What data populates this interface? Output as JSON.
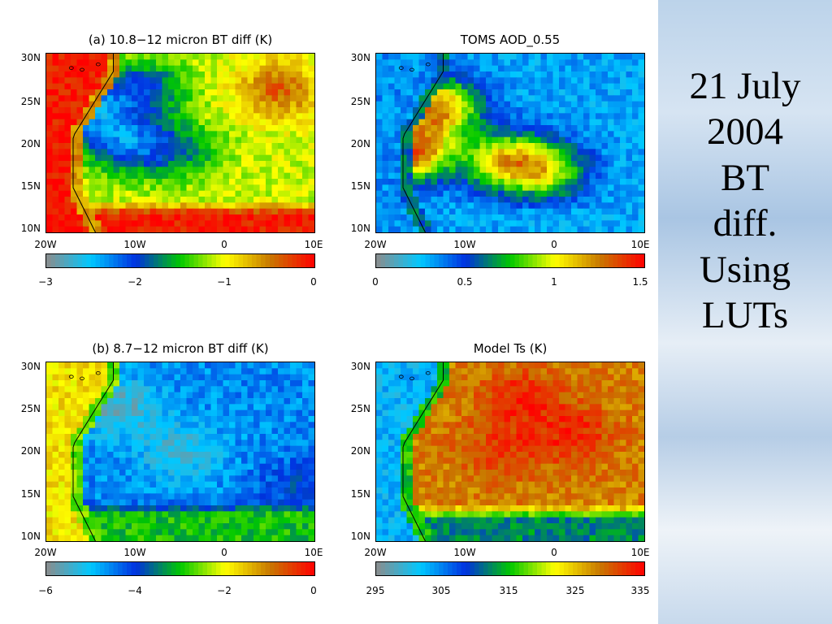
{
  "side": {
    "lines": [
      "21 July",
      "2004",
      "BT",
      "diff.",
      "Using",
      "LUTs"
    ],
    "bg_color": "#bcd3ea"
  },
  "colorscale": [
    "#8c8c8c",
    "#00c8ff",
    "#0030e0",
    "#00c800",
    "#ffff00",
    "#c87800",
    "#ff0000"
  ],
  "chart_data": [
    {
      "type": "heatmap",
      "title": "(a) 10.8−12 micron BT diff (K)",
      "x_ticks": [
        "20W",
        "10W",
        "0",
        "10E"
      ],
      "y_ticks": [
        "30N",
        "25N",
        "20N",
        "15N",
        "10N"
      ],
      "xlim": [
        -20,
        10
      ],
      "ylim": [
        10,
        30
      ],
      "colorbar": {
        "ticks": [
          "−3",
          "−2",
          "−1",
          "0"
        ],
        "range": [
          -3,
          0
        ]
      },
      "fields": {
        "ocean": -0.1,
        "coast": [
          -0.6
        ],
        "land_base": -1.1,
        "hotspots": [
          {
            "lon": -16,
            "lat": 24,
            "value": -2.4
          },
          {
            "lon": -11,
            "lat": 20,
            "value": -2.2
          },
          {
            "lon": -9,
            "lat": 26,
            "value": -2.0
          },
          {
            "lon": -5,
            "lat": 19,
            "value": -1.7
          },
          {
            "lon": 6,
            "lat": 26,
            "value": -0.4
          }
        ],
        "south_band": {
          "lat_max": 13.5,
          "value": -0.1
        }
      }
    },
    {
      "type": "heatmap",
      "title": "TOMS AOD_0.55",
      "x_ticks": [
        "20W",
        "10W",
        "0",
        "10E"
      ],
      "y_ticks": [
        "30N",
        "25N",
        "20N",
        "15N",
        "10N"
      ],
      "xlim": [
        -20,
        10
      ],
      "ylim": [
        10,
        30
      ],
      "colorbar": {
        "ticks": [
          "0",
          "0.5",
          "1",
          "1.5"
        ],
        "range": [
          0,
          1.5
        ]
      },
      "fields": {
        "ocean": 0.35,
        "coast": [
          0.6
        ],
        "land_base": 0.3,
        "hotspots": [
          {
            "lon": -16,
            "lat": 19,
            "value": 1.3
          },
          {
            "lon": -13,
            "lat": 24,
            "value": 1.2
          },
          {
            "lon": -6,
            "lat": 18,
            "value": 1.0
          },
          {
            "lon": -1,
            "lat": 17,
            "value": 0.95
          }
        ],
        "south_band": {
          "lat_max": 13.0,
          "value": 0.3
        }
      }
    },
    {
      "type": "heatmap",
      "title": "(b) 8.7−12 micron BT diff (K)",
      "x_ticks": [
        "20W",
        "10W",
        "0",
        "10E"
      ],
      "y_ticks": [
        "30N",
        "25N",
        "20N",
        "15N",
        "10N"
      ],
      "xlim": [
        -20,
        10
      ],
      "ylim": [
        10,
        30
      ],
      "colorbar": {
        "ticks": [
          "−6",
          "−4",
          "−2",
          "0"
        ],
        "range": [
          -6,
          0
        ]
      },
      "fields": {
        "ocean": -1.8,
        "coast": [
          -2.6
        ],
        "land_base": -4.6,
        "hotspots": [
          {
            "lon": -12,
            "lat": 25,
            "value": -5.6
          },
          {
            "lon": -5,
            "lat": 20,
            "value": -5.4
          },
          {
            "lon": 8,
            "lat": 16,
            "value": -4.0
          }
        ],
        "south_band": {
          "lat_max": 14.5,
          "value": -3.0
        }
      }
    },
    {
      "type": "heatmap",
      "title": "Model Ts (K)",
      "x_ticks": [
        "20W",
        "10W",
        "0",
        "10E"
      ],
      "y_ticks": [
        "30N",
        "25N",
        "20N",
        "15N",
        "10N"
      ],
      "xlim": [
        -20,
        10
      ],
      "ylim": [
        10,
        30
      ],
      "colorbar": {
        "ticks": [
          "295",
          "305",
          "315",
          "325",
          "335"
        ],
        "range": [
          295,
          335
        ]
      },
      "fields": {
        "ocean": 302,
        "coast": [
          315
        ],
        "land_base": 328,
        "hotspots": [
          {
            "lon": -4,
            "lat": 26,
            "value": 333
          },
          {
            "lon": -6,
            "lat": 20,
            "value": 332
          },
          {
            "lon": 2,
            "lat": 22,
            "value": 333
          }
        ],
        "south_band": {
          "lat_max": 14.0,
          "value": 312
        }
      }
    }
  ]
}
